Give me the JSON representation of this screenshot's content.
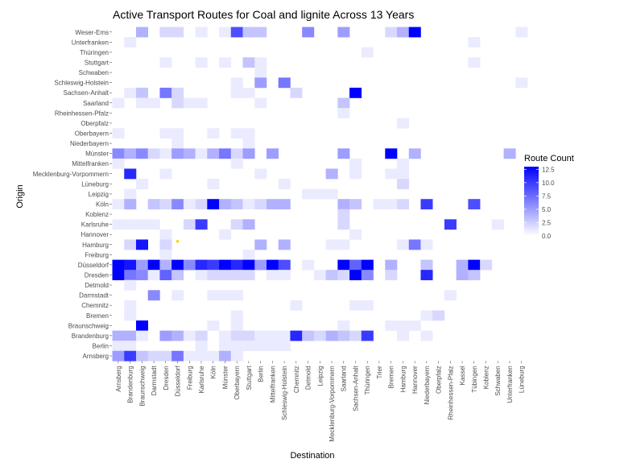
{
  "chart_data": {
    "type": "heatmap",
    "title": "Active Transport Routes for Coal and lignite Across 13 Years",
    "xlabel": "Destination",
    "ylabel": "Origin",
    "x_categories": [
      "Arnsberg",
      "Brandenburg",
      "Braunschweig",
      "Darmstadt",
      "Dresden",
      "Düsseldorf",
      "Freiburg",
      "Karlsruhe",
      "Köln",
      "Münster",
      "Oberbayern",
      "Stuttgart",
      "Berlin",
      "Mittelfranken",
      "Schleswig-Holstein",
      "Chemnitz",
      "Detmold",
      "Leipzig",
      "Mecklenburg-Vorpommern",
      "Saarland",
      "Sachsen-Anhalt",
      "Thüringen",
      "Trier",
      "Bremen",
      "Hamburg",
      "Hannover",
      "Niederbayern",
      "Oberpfalz",
      "Rheinhessen-Pfalz",
      "Kassel",
      "Tübingen",
      "Koblenz",
      "Schwaben",
      "Unterfranken",
      "Lüneburg"
    ],
    "y_categories": [
      "Weser-Ems",
      "Unterfranken",
      "Thüringen",
      "Stuttgart",
      "Schwaben",
      "Schleswig-Holstein",
      "Sachsen-Anhalt",
      "Saarland",
      "Rheinhessen-Pfalz",
      "Oberpfalz",
      "Oberbayern",
      "Niederbayern",
      "Münster",
      "Mittelfranken",
      "Mecklenburg-Vorpommern",
      "Lüneburg",
      "Leipzig",
      "Köln",
      "Koblenz",
      "Karlsruhe",
      "Hannover",
      "Hamburg",
      "Freiburg",
      "Düsseldorf",
      "Dresden",
      "Detmold",
      "Darmstadt",
      "Chemnitz",
      "Bremen",
      "Braunschweig",
      "Brandenburg",
      "Berlin",
      "Arnsberg"
    ],
    "legend": {
      "title": "Route Count",
      "ticks": [
        "0.0",
        "2.5",
        "5.0",
        "7.5",
        "10.0",
        "12.5"
      ],
      "min": 0,
      "max": 13,
      "low_color": "#ffffff",
      "high_color": "#0000ff",
      "position": "right"
    },
    "highlight_color": "#ffd400",
    "highlight": [
      {
        "x": "Düsseldorf",
        "y": "Hamburg"
      }
    ],
    "cells": [
      [
        "Weser-Ems",
        "Braunschweig",
        4
      ],
      [
        "Weser-Ems",
        "Dresden",
        2
      ],
      [
        "Weser-Ems",
        "Düsseldorf",
        2
      ],
      [
        "Weser-Ems",
        "Karlsruhe",
        1
      ],
      [
        "Weser-Ems",
        "Münster",
        1
      ],
      [
        "Weser-Ems",
        "Oberbayern",
        9
      ],
      [
        "Weser-Ems",
        "Stuttgart",
        3
      ],
      [
        "Weser-Ems",
        "Berlin",
        3
      ],
      [
        "Weser-Ems",
        "Detmold",
        6
      ],
      [
        "Weser-Ems",
        "Saarland",
        5
      ],
      [
        "Weser-Ems",
        "Bremen",
        2
      ],
      [
        "Weser-Ems",
        "Hamburg",
        4
      ],
      [
        "Weser-Ems",
        "Hannover",
        13
      ],
      [
        "Weser-Ems",
        "Lüneburg",
        1
      ],
      [
        "Unterfranken",
        "Brandenburg",
        1
      ],
      [
        "Unterfranken",
        "Tübingen",
        1
      ],
      [
        "Thüringen",
        "Thüringen",
        1
      ],
      [
        "Stuttgart",
        "Dresden",
        1
      ],
      [
        "Stuttgart",
        "Karlsruhe",
        1
      ],
      [
        "Stuttgart",
        "Münster",
        1
      ],
      [
        "Stuttgart",
        "Stuttgart",
        3
      ],
      [
        "Stuttgart",
        "Berlin",
        1
      ],
      [
        "Stuttgart",
        "Tübingen",
        1
      ],
      [
        "Schwaben",
        "Berlin",
        1
      ],
      [
        "Schleswig-Holstein",
        "Oberbayern",
        1
      ],
      [
        "Schleswig-Holstein",
        "Berlin",
        5
      ],
      [
        "Schleswig-Holstein",
        "Schleswig-Holstein",
        7
      ],
      [
        "Schleswig-Holstein",
        "Lüneburg",
        1
      ],
      [
        "Sachsen-Anhalt",
        "Brandenburg",
        1
      ],
      [
        "Sachsen-Anhalt",
        "Braunschweig",
        3
      ],
      [
        "Sachsen-Anhalt",
        "Dresden",
        7
      ],
      [
        "Sachsen-Anhalt",
        "Düsseldorf",
        2
      ],
      [
        "Sachsen-Anhalt",
        "Oberbayern",
        1
      ],
      [
        "Sachsen-Anhalt",
        "Stuttgart",
        1
      ],
      [
        "Sachsen-Anhalt",
        "Chemnitz",
        2
      ],
      [
        "Sachsen-Anhalt",
        "Sachsen-Anhalt",
        13
      ],
      [
        "Saarland",
        "Arnsberg",
        1
      ],
      [
        "Saarland",
        "Braunschweig",
        1
      ],
      [
        "Saarland",
        "Darmstadt",
        1
      ],
      [
        "Saarland",
        "Düsseldorf",
        2
      ],
      [
        "Saarland",
        "Freiburg",
        1
      ],
      [
        "Saarland",
        "Karlsruhe",
        1
      ],
      [
        "Saarland",
        "Berlin",
        1
      ],
      [
        "Saarland",
        "Saarland",
        3
      ],
      [
        "Rheinhessen-Pfalz",
        "Saarland",
        1
      ],
      [
        "Oberpfalz",
        "Hamburg",
        1
      ],
      [
        "Oberbayern",
        "Arnsberg",
        1
      ],
      [
        "Oberbayern",
        "Dresden",
        1
      ],
      [
        "Oberbayern",
        "Düsseldorf",
        1
      ],
      [
        "Oberbayern",
        "Köln",
        1
      ],
      [
        "Oberbayern",
        "Oberbayern",
        1
      ],
      [
        "Oberbayern",
        "Stuttgart",
        1
      ],
      [
        "Niederbayern",
        "Düsseldorf",
        1
      ],
      [
        "Niederbayern",
        "Stuttgart",
        1
      ],
      [
        "Münster",
        "Arnsberg",
        6
      ],
      [
        "Münster",
        "Brandenburg",
        4
      ],
      [
        "Münster",
        "Braunschweig",
        6
      ],
      [
        "Münster",
        "Darmstadt",
        2
      ],
      [
        "Münster",
        "Dresden",
        1
      ],
      [
        "Münster",
        "Düsseldorf",
        5
      ],
      [
        "Münster",
        "Freiburg",
        4
      ],
      [
        "Münster",
        "Karlsruhe",
        1
      ],
      [
        "Münster",
        "Köln",
        4
      ],
      [
        "Münster",
        "Münster",
        7
      ],
      [
        "Münster",
        "Oberbayern",
        2
      ],
      [
        "Münster",
        "Stuttgart",
        5
      ],
      [
        "Münster",
        "Mittelfranken",
        5
      ],
      [
        "Münster",
        "Saarland",
        5
      ],
      [
        "Münster",
        "Bremen",
        13
      ],
      [
        "Münster",
        "Hannover",
        4
      ],
      [
        "Münster",
        "Unterfranken",
        4
      ],
      [
        "Mittelfranken",
        "Arnsberg",
        1
      ],
      [
        "Mittelfranken",
        "Oberbayern",
        1
      ],
      [
        "Mittelfranken",
        "Sachsen-Anhalt",
        1
      ],
      [
        "Mittelfranken",
        "Hamburg",
        1
      ],
      [
        "Mecklenburg-Vorpommern",
        "Brandenburg",
        11
      ],
      [
        "Mecklenburg-Vorpommern",
        "Dresden",
        1
      ],
      [
        "Mecklenburg-Vorpommern",
        "Berlin",
        1
      ],
      [
        "Mecklenburg-Vorpommern",
        "Mecklenburg-Vorpommern",
        4
      ],
      [
        "Mecklenburg-Vorpommern",
        "Sachsen-Anhalt",
        1
      ],
      [
        "Mecklenburg-Vorpommern",
        "Bremen",
        1
      ],
      [
        "Mecklenburg-Vorpommern",
        "Hamburg",
        1
      ],
      [
        "Lüneburg",
        "Braunschweig",
        1
      ],
      [
        "Lüneburg",
        "Köln",
        1
      ],
      [
        "Lüneburg",
        "Schleswig-Holstein",
        1
      ],
      [
        "Lüneburg",
        "Hamburg",
        2
      ],
      [
        "Leipzig",
        "Brandenburg",
        1
      ],
      [
        "Leipzig",
        "Detmold",
        1
      ],
      [
        "Leipzig",
        "Leipzig",
        1
      ],
      [
        "Leipzig",
        "Mecklenburg-Vorpommern",
        1
      ],
      [
        "Köln",
        "Arnsberg",
        1
      ],
      [
        "Köln",
        "Brandenburg",
        4
      ],
      [
        "Köln",
        "Darmstadt",
        3
      ],
      [
        "Köln",
        "Dresden",
        2
      ],
      [
        "Köln",
        "Düsseldorf",
        6
      ],
      [
        "Köln",
        "Freiburg",
        1
      ],
      [
        "Köln",
        "Karlsruhe",
        2
      ],
      [
        "Köln",
        "Köln",
        13
      ],
      [
        "Köln",
        "Münster",
        4
      ],
      [
        "Köln",
        "Oberbayern",
        3
      ],
      [
        "Köln",
        "Stuttgart",
        1
      ],
      [
        "Köln",
        "Berlin",
        2
      ],
      [
        "Köln",
        "Mittelfranken",
        4
      ],
      [
        "Köln",
        "Schleswig-Holstein",
        4
      ],
      [
        "Köln",
        "Saarland",
        4
      ],
      [
        "Köln",
        "Sachsen-Anhalt",
        3
      ],
      [
        "Köln",
        "Trier",
        1
      ],
      [
        "Köln",
        "Bremen",
        1
      ],
      [
        "Köln",
        "Hamburg",
        2
      ],
      [
        "Köln",
        "Niederbayern",
        10
      ],
      [
        "Köln",
        "Tübingen",
        9
      ],
      [
        "Koblenz",
        "Saarland",
        2
      ],
      [
        "Karlsruhe",
        "Arnsberg",
        1
      ],
      [
        "Karlsruhe",
        "Brandenburg",
        1
      ],
      [
        "Karlsruhe",
        "Braunschweig",
        1
      ],
      [
        "Karlsruhe",
        "Darmstadt",
        1
      ],
      [
        "Karlsruhe",
        "Freiburg",
        2
      ],
      [
        "Karlsruhe",
        "Karlsruhe",
        10
      ],
      [
        "Karlsruhe",
        "Oberbayern",
        2
      ],
      [
        "Karlsruhe",
        "Stuttgart",
        4
      ],
      [
        "Karlsruhe",
        "Saarland",
        2
      ],
      [
        "Karlsruhe",
        "Rheinhessen-Pfalz",
        10
      ],
      [
        "Karlsruhe",
        "Schwaben",
        1
      ],
      [
        "Hannover",
        "Dresden",
        1
      ],
      [
        "Hannover",
        "Münster",
        1
      ],
      [
        "Hannover",
        "Sachsen-Anhalt",
        1
      ],
      [
        "Hamburg",
        "Brandenburg",
        2
      ],
      [
        "Hamburg",
        "Braunschweig",
        12
      ],
      [
        "Hamburg",
        "Dresden",
        2
      ],
      [
        "Hamburg",
        "Berlin",
        4
      ],
      [
        "Hamburg",
        "Schleswig-Holstein",
        4
      ],
      [
        "Hamburg",
        "Mecklenburg-Vorpommern",
        1
      ],
      [
        "Hamburg",
        "Saarland",
        1
      ],
      [
        "Hamburg",
        "Hamburg",
        1
      ],
      [
        "Hamburg",
        "Hannover",
        7
      ],
      [
        "Hamburg",
        "Niederbayern",
        1
      ],
      [
        "Freiburg",
        "Dresden",
        1
      ],
      [
        "Freiburg",
        "Stuttgart",
        1
      ],
      [
        "Düsseldorf",
        "Arnsberg",
        13
      ],
      [
        "Düsseldorf",
        "Brandenburg",
        12
      ],
      [
        "Düsseldorf",
        "Braunschweig",
        5
      ],
      [
        "Düsseldorf",
        "Darmstadt",
        13
      ],
      [
        "Düsseldorf",
        "Dresden",
        4
      ],
      [
        "Düsseldorf",
        "Düsseldorf",
        13
      ],
      [
        "Düsseldorf",
        "Freiburg",
        6
      ],
      [
        "Düsseldorf",
        "Karlsruhe",
        11
      ],
      [
        "Düsseldorf",
        "Köln",
        10
      ],
      [
        "Düsseldorf",
        "Münster",
        13
      ],
      [
        "Düsseldorf",
        "Oberbayern",
        11
      ],
      [
        "Düsseldorf",
        "Stuttgart",
        13
      ],
      [
        "Düsseldorf",
        "Berlin",
        5
      ],
      [
        "Düsseldorf",
        "Mittelfranken",
        13
      ],
      [
        "Düsseldorf",
        "Schleswig-Holstein",
        9
      ],
      [
        "Düsseldorf",
        "Detmold",
        1
      ],
      [
        "Düsseldorf",
        "Saarland",
        13
      ],
      [
        "Düsseldorf",
        "Sachsen-Anhalt",
        8
      ],
      [
        "Düsseldorf",
        "Thüringen",
        13
      ],
      [
        "Düsseldorf",
        "Bremen",
        4
      ],
      [
        "Düsseldorf",
        "Niederbayern",
        3
      ],
      [
        "Düsseldorf",
        "Kassel",
        4
      ],
      [
        "Düsseldorf",
        "Tübingen",
        13
      ],
      [
        "Düsseldorf",
        "Koblenz",
        2
      ],
      [
        "Dresden",
        "Arnsberg",
        13
      ],
      [
        "Dresden",
        "Brandenburg",
        7
      ],
      [
        "Dresden",
        "Braunschweig",
        6
      ],
      [
        "Dresden",
        "Darmstadt",
        1
      ],
      [
        "Dresden",
        "Dresden",
        8
      ],
      [
        "Dresden",
        "Düsseldorf",
        3
      ],
      [
        "Dresden",
        "Karlsruhe",
        1
      ],
      [
        "Dresden",
        "Köln",
        2
      ],
      [
        "Dresden",
        "Münster",
        2
      ],
      [
        "Dresden",
        "Oberbayern",
        2
      ],
      [
        "Dresden",
        "Stuttgart",
        2
      ],
      [
        "Dresden",
        "Mittelfranken",
        1
      ],
      [
        "Dresden",
        "Schleswig-Holstein",
        1
      ],
      [
        "Dresden",
        "Leipzig",
        1
      ],
      [
        "Dresden",
        "Mecklenburg-Vorpommern",
        3
      ],
      [
        "Dresden",
        "Saarland",
        2
      ],
      [
        "Dresden",
        "Sachsen-Anhalt",
        13
      ],
      [
        "Dresden",
        "Thüringen",
        6
      ],
      [
        "Dresden",
        "Bremen",
        2
      ],
      [
        "Dresden",
        "Niederbayern",
        11
      ],
      [
        "Dresden",
        "Kassel",
        4
      ],
      [
        "Dresden",
        "Tübingen",
        3
      ],
      [
        "Detmold",
        "Brandenburg",
        1
      ],
      [
        "Darmstadt",
        "Darmstadt",
        6
      ],
      [
        "Darmstadt",
        "Düsseldorf",
        1
      ],
      [
        "Darmstadt",
        "Köln",
        1
      ],
      [
        "Darmstadt",
        "Münster",
        1
      ],
      [
        "Darmstadt",
        "Oberbayern",
        1
      ],
      [
        "Darmstadt",
        "Rheinhessen-Pfalz",
        1
      ],
      [
        "Chemnitz",
        "Brandenburg",
        1
      ],
      [
        "Chemnitz",
        "Chemnitz",
        1
      ],
      [
        "Chemnitz",
        "Sachsen-Anhalt",
        1
      ],
      [
        "Chemnitz",
        "Thüringen",
        1
      ],
      [
        "Bremen",
        "Brandenburg",
        1
      ],
      [
        "Bremen",
        "Oberbayern",
        1
      ],
      [
        "Bremen",
        "Niederbayern",
        1
      ],
      [
        "Bremen",
        "Oberpfalz",
        2
      ],
      [
        "Braunschweig",
        "Braunschweig",
        13
      ],
      [
        "Braunschweig",
        "Köln",
        1
      ],
      [
        "Braunschweig",
        "Oberbayern",
        1
      ],
      [
        "Braunschweig",
        "Saarland",
        1
      ],
      [
        "Braunschweig",
        "Bremen",
        1
      ],
      [
        "Braunschweig",
        "Hamburg",
        1
      ],
      [
        "Braunschweig",
        "Hannover",
        1
      ],
      [
        "Brandenburg",
        "Arnsberg",
        4
      ],
      [
        "Brandenburg",
        "Brandenburg",
        4
      ],
      [
        "Brandenburg",
        "Braunschweig",
        1
      ],
      [
        "Brandenburg",
        "Dresden",
        5
      ],
      [
        "Brandenburg",
        "Düsseldorf",
        4
      ],
      [
        "Brandenburg",
        "Freiburg",
        1
      ],
      [
        "Brandenburg",
        "Karlsruhe",
        2
      ],
      [
        "Brandenburg",
        "Münster",
        1
      ],
      [
        "Brandenburg",
        "Oberbayern",
        2
      ],
      [
        "Brandenburg",
        "Stuttgart",
        2
      ],
      [
        "Brandenburg",
        "Berlin",
        1
      ],
      [
        "Brandenburg",
        "Mittelfranken",
        1
      ],
      [
        "Brandenburg",
        "Schleswig-Holstein",
        1
      ],
      [
        "Brandenburg",
        "Chemnitz",
        11
      ],
      [
        "Brandenburg",
        "Detmold",
        3
      ],
      [
        "Brandenburg",
        "Leipzig",
        2
      ],
      [
        "Brandenburg",
        "Mecklenburg-Vorpommern",
        4
      ],
      [
        "Brandenburg",
        "Saarland",
        3
      ],
      [
        "Brandenburg",
        "Sachsen-Anhalt",
        2
      ],
      [
        "Brandenburg",
        "Thüringen",
        10
      ],
      [
        "Brandenburg",
        "Hamburg",
        1
      ],
      [
        "Brandenburg",
        "Niederbayern",
        1
      ],
      [
        "Berlin",
        "Arnsberg",
        1
      ],
      [
        "Berlin",
        "Brandenburg",
        1
      ],
      [
        "Berlin",
        "Karlsruhe",
        1
      ],
      [
        "Berlin",
        "Münster",
        1
      ],
      [
        "Berlin",
        "Oberbayern",
        1
      ],
      [
        "Berlin",
        "Stuttgart",
        1
      ],
      [
        "Berlin",
        "Berlin",
        1
      ],
      [
        "Berlin",
        "Mittelfranken",
        1
      ],
      [
        "Berlin",
        "Schleswig-Holstein",
        1
      ],
      [
        "Arnsberg",
        "Arnsberg",
        5
      ],
      [
        "Arnsberg",
        "Brandenburg",
        10
      ],
      [
        "Arnsberg",
        "Braunschweig",
        3
      ],
      [
        "Arnsberg",
        "Darmstadt",
        2
      ],
      [
        "Arnsberg",
        "Dresden",
        2
      ],
      [
        "Arnsberg",
        "Düsseldorf",
        7
      ],
      [
        "Arnsberg",
        "Freiburg",
        1
      ],
      [
        "Arnsberg",
        "Karlsruhe",
        1
      ],
      [
        "Arnsberg",
        "Köln",
        1
      ],
      [
        "Arnsberg",
        "Münster",
        4
      ],
      [
        "Arnsberg",
        "Oberbayern",
        1
      ]
    ]
  }
}
